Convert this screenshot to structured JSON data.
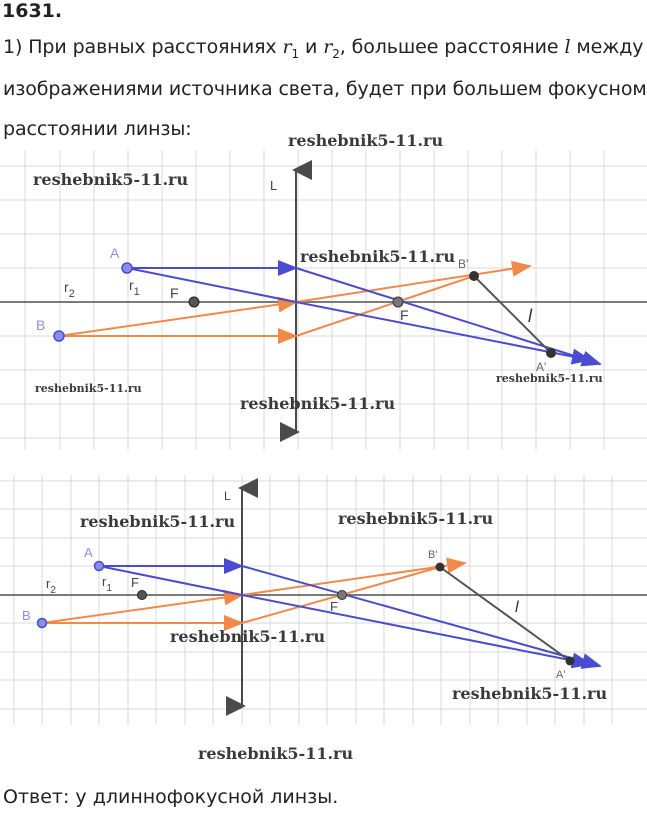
{
  "problem_number": "1631.",
  "text": {
    "line1_prefix": "1) При равных расстояниях",
    "r": "r",
    "sub1": "1",
    "and": "и",
    "sub2": "2",
    "line1_suffix": ", большее расстояние",
    "l": "l",
    "between": "между",
    "line2": "изображениями источника света, будет при большем фокусном",
    "line3": "расстоянии линзы:"
  },
  "diagram_top": {
    "lens_label": "L",
    "A": "A",
    "B": "B",
    "F_left": "F",
    "F_right": "F",
    "B_prime": "B'",
    "A_prime": "A'",
    "r1": "r",
    "r1_sub": "1",
    "r2": "r",
    "r2_sub": "2",
    "l": "l"
  },
  "diagram_bottom": {
    "lens_label": "L",
    "A": "A",
    "B": "B",
    "F_left": "F",
    "F_right": "F",
    "B_prime": "B'",
    "A_prime": "A'",
    "r1": "r",
    "r1_sub": "1",
    "r2": "r",
    "r2_sub": "2",
    "l": "l"
  },
  "watermark": "reshebnik5-11.ru",
  "answer": "Ответ:  у длиннофокусной линзы.",
  "colors": {
    "blue_ray": "#4a4bd0",
    "orange_ray": "#f0894a",
    "point_fill": "#8a8ee8",
    "grid": "#d8d8d8",
    "axis": "#7a7a7a"
  }
}
